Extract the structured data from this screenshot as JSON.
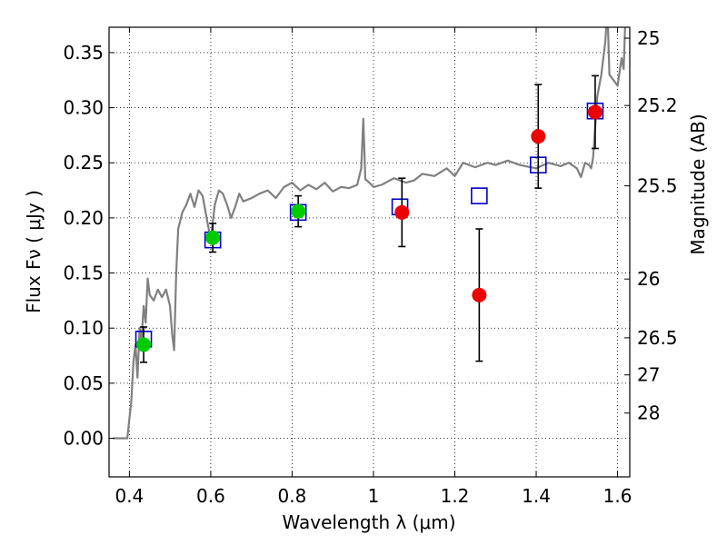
{
  "chart_data": {
    "type": "scatter",
    "title": "",
    "xlabel": "Wavelength  λ (μm)",
    "ylabel": "Flux  Fν  ( μJy )",
    "ylabel_right": "Magnitude (AB)",
    "xlim": [
      0.35,
      1.63
    ],
    "ylim": [
      -0.035,
      0.373
    ],
    "grid": true,
    "legend": "none",
    "x_ticks": [
      {
        "value": 0.4,
        "label": "0.4"
      },
      {
        "value": 0.6,
        "label": "0.6"
      },
      {
        "value": 0.8,
        "label": "0.8"
      },
      {
        "value": 1.0,
        "label": "1"
      },
      {
        "value": 1.2,
        "label": "1.2"
      },
      {
        "value": 1.4,
        "label": "1.4"
      },
      {
        "value": 1.6,
        "label": "1.6"
      }
    ],
    "y_ticks": [
      {
        "value": 0.0,
        "label": "0.00"
      },
      {
        "value": 0.05,
        "label": "0.05"
      },
      {
        "value": 0.1,
        "label": "0.10"
      },
      {
        "value": 0.15,
        "label": "0.15"
      },
      {
        "value": 0.2,
        "label": "0.20"
      },
      {
        "value": 0.25,
        "label": "0.25"
      },
      {
        "value": 0.3,
        "label": "0.30"
      },
      {
        "value": 0.35,
        "label": "0.35"
      }
    ],
    "right_ticks": [
      {
        "value": 25,
        "label": "25"
      },
      {
        "value": 25.2,
        "label": "25.2"
      },
      {
        "value": 25.5,
        "label": "25.5"
      },
      {
        "value": 26,
        "label": "26"
      },
      {
        "value": 26.5,
        "label": "26.5"
      },
      {
        "value": 27,
        "label": "27"
      },
      {
        "value": 28,
        "label": "28"
      }
    ],
    "model_sed": {
      "color": "#808080",
      "x": [
        0.36,
        0.38,
        0.395,
        0.405,
        0.41,
        0.415,
        0.42,
        0.425,
        0.43,
        0.435,
        0.44,
        0.445,
        0.45,
        0.46,
        0.47,
        0.48,
        0.49,
        0.5,
        0.505,
        0.51,
        0.515,
        0.52,
        0.53,
        0.54,
        0.55,
        0.56,
        0.57,
        0.58,
        0.59,
        0.6,
        0.61,
        0.62,
        0.63,
        0.64,
        0.65,
        0.66,
        0.67,
        0.68,
        0.7,
        0.72,
        0.74,
        0.76,
        0.78,
        0.8,
        0.82,
        0.84,
        0.86,
        0.88,
        0.9,
        0.92,
        0.94,
        0.96,
        0.97,
        0.975,
        0.98,
        0.99,
        1.0,
        1.02,
        1.05,
        1.08,
        1.1,
        1.12,
        1.15,
        1.18,
        1.2,
        1.22,
        1.25,
        1.28,
        1.3,
        1.33,
        1.36,
        1.4,
        1.43,
        1.46,
        1.48,
        1.5,
        1.51,
        1.52,
        1.53,
        1.535,
        1.54,
        1.55,
        1.56,
        1.57,
        1.575,
        1.58,
        1.6,
        1.61,
        1.615,
        1.62
      ],
      "y": [
        0.0,
        0.0,
        0.0,
        0.035,
        0.07,
        0.085,
        0.055,
        0.1,
        0.09,
        0.12,
        0.105,
        0.145,
        0.13,
        0.125,
        0.135,
        0.128,
        0.135,
        0.12,
        0.095,
        0.08,
        0.15,
        0.19,
        0.205,
        0.212,
        0.222,
        0.21,
        0.225,
        0.22,
        0.2,
        0.18,
        0.212,
        0.225,
        0.222,
        0.212,
        0.2,
        0.21,
        0.222,
        0.215,
        0.218,
        0.222,
        0.225,
        0.218,
        0.228,
        0.232,
        0.225,
        0.23,
        0.226,
        0.232,
        0.224,
        0.228,
        0.227,
        0.23,
        0.245,
        0.29,
        0.235,
        0.232,
        0.228,
        0.23,
        0.236,
        0.232,
        0.234,
        0.24,
        0.238,
        0.245,
        0.238,
        0.25,
        0.246,
        0.25,
        0.248,
        0.252,
        0.248,
        0.245,
        0.25,
        0.247,
        0.25,
        0.245,
        0.237,
        0.25,
        0.248,
        0.245,
        0.255,
        0.31,
        0.33,
        0.36,
        0.39,
        0.33,
        0.32,
        0.345,
        0.335,
        0.39
      ]
    },
    "model_points": {
      "marker": "open-square",
      "color": "#0000cc",
      "x": [
        0.435,
        0.605,
        0.815,
        1.065,
        1.26,
        1.405,
        1.545
      ],
      "y": [
        0.09,
        0.18,
        0.205,
        0.21,
        0.22,
        0.248,
        0.297
      ]
    },
    "green_points": {
      "marker": "filled-circle",
      "color": "#00cc00",
      "x": [
        0.435,
        0.605,
        0.815
      ],
      "y": [
        0.085,
        0.182,
        0.206
      ],
      "yerr": [
        0.016,
        0.013,
        0.014
      ]
    },
    "red_points": {
      "marker": "filled-circle",
      "color": "#ee0000",
      "x": [
        1.07,
        1.26,
        1.405,
        1.545
      ],
      "y": [
        0.205,
        0.13,
        0.274,
        0.296
      ],
      "yerr": [
        0.031,
        0.06,
        0.047,
        0.033
      ]
    }
  }
}
